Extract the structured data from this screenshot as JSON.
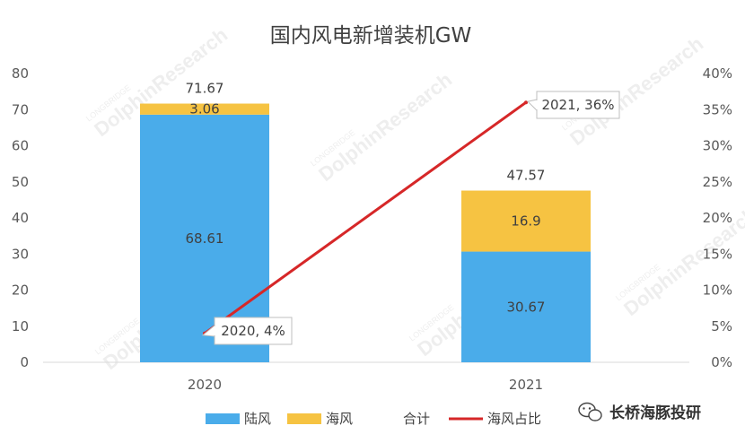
{
  "chart_data": {
    "type": "bar",
    "title": "国内风电新增装机GW",
    "categories": [
      "2020",
      "2021"
    ],
    "series": [
      {
        "name": "陆风",
        "values": [
          68.61,
          30.67
        ],
        "color": "#4aacea"
      },
      {
        "name": "海风",
        "values": [
          3.06,
          16.9
        ],
        "color": "#f6c342"
      }
    ],
    "totals": {
      "name": "合计",
      "values": [
        71.67,
        47.57
      ]
    },
    "line_series": {
      "name": "海风占比",
      "values": [
        4,
        36
      ],
      "unit": "%",
      "color": "#d62728",
      "labels": [
        "2020, 4%",
        "2021, 36%"
      ]
    },
    "ylim": [
      0,
      80
    ],
    "y_ticks": [
      "0",
      "10",
      "20",
      "30",
      "40",
      "50",
      "60",
      "70",
      "80"
    ],
    "y2lim": [
      0,
      40
    ],
    "y2_ticks": [
      "0%",
      "5%",
      "10%",
      "15%",
      "20%",
      "25%",
      "30%",
      "35%",
      "40%"
    ],
    "legend_position": "bottom",
    "grid": false
  },
  "watermark": {
    "line1": "LONGBRIDGE",
    "line2": "DolphinResearch"
  },
  "brand": {
    "text": "长桥海豚投研",
    "icon": "wechat-icon"
  }
}
